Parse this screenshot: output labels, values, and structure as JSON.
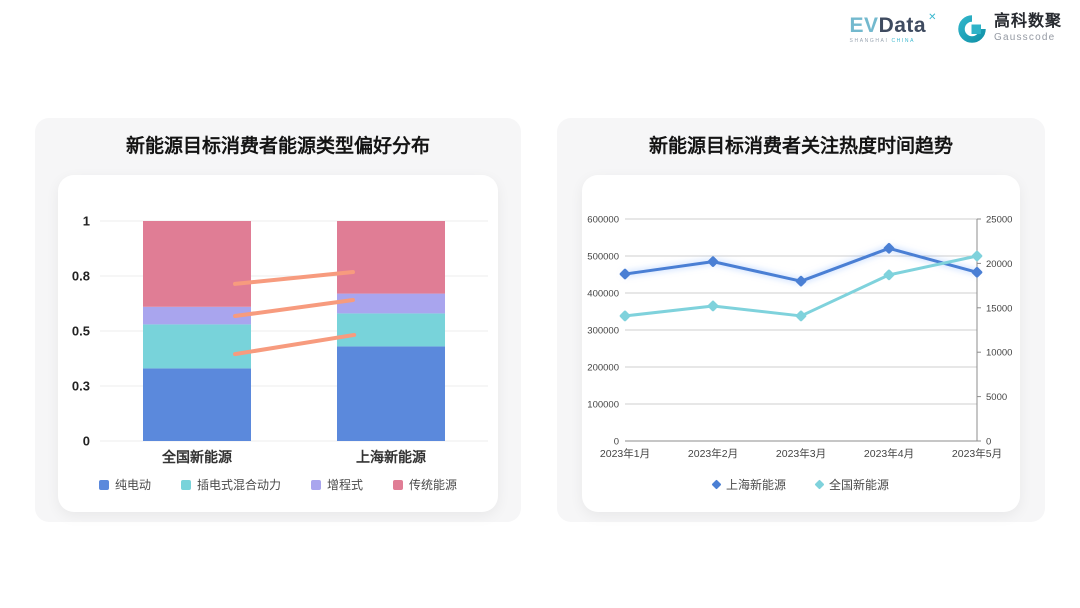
{
  "header": {
    "evdata": {
      "text_ev": "EV",
      "text_data": "Data",
      "superscript": "✕",
      "subtext_left": "SHANGHAI",
      "subtext_right": "CHINA"
    },
    "gausscode": {
      "icon": "gausscode-g-icon",
      "name_cn": "高科数聚",
      "name_en": "Gausscode",
      "icon_color_dark": "#1293a9",
      "icon_color_light": "#2fb3c8"
    }
  },
  "chart_data": [
    {
      "type": "bar",
      "stacked": true,
      "title": "新能源目标消费者能源类型偏好分布",
      "categories": [
        "全国新能源",
        "上海新能源"
      ],
      "series": [
        {
          "name": "纯电动",
          "color": "#5b89dc",
          "values": [
            0.33,
            0.43
          ]
        },
        {
          "name": "插电式混合动力",
          "color": "#78d3da",
          "values": [
            0.2,
            0.15
          ]
        },
        {
          "name": "增程式",
          "color": "#a9a5ee",
          "values": [
            0.08,
            0.09
          ]
        },
        {
          "name": "传统能源",
          "color": "#e07d95",
          "values": [
            0.39,
            0.33
          ]
        }
      ],
      "ylim": [
        0,
        1
      ],
      "ytick_values": [
        0,
        0.25,
        0.5,
        0.75,
        1
      ],
      "ytick_labels": [
        "0",
        "0.3",
        "0.5",
        "0.8",
        "1"
      ],
      "grid": true,
      "gridline_color": "#ececec",
      "legend_position": "bottom",
      "connector_lines": {
        "color": "#f79b7e",
        "segments": [
          {
            "x1": 0.348,
            "v1": 0.714,
            "x2": 0.652,
            "v2": 0.768
          },
          {
            "x1": 0.348,
            "v1": 0.568,
            "x2": 0.652,
            "v2": 0.641
          },
          {
            "x1": 0.348,
            "v1": 0.395,
            "x2": 0.655,
            "v2": 0.482
          }
        ]
      }
    },
    {
      "type": "line",
      "title": "新能源目标消费者关注热度时间趋势",
      "x": [
        "2023年1月",
        "2023年2月",
        "2023年3月",
        "2023年4月",
        "2023年5月"
      ],
      "series": [
        {
          "name": "上海新能源",
          "axis": "right",
          "color": "#4a7fd4",
          "marker": "diamond",
          "glow": true,
          "values": [
            18800,
            20200,
            18000,
            21700,
            19000
          ]
        },
        {
          "name": "全国新能源",
          "axis": "left",
          "color": "#7fd2dc",
          "marker": "diamond",
          "glow": false,
          "values": [
            338000,
            365000,
            338000,
            449000,
            500000
          ]
        }
      ],
      "left_axis": {
        "min": 0,
        "max": 600000,
        "step": 100000,
        "labels": [
          "0",
          "100000",
          "200000",
          "300000",
          "400000",
          "500000",
          "600000"
        ]
      },
      "right_axis": {
        "min": 0,
        "max": 25000,
        "step": 5000,
        "labels": [
          "0",
          "5000",
          "10000",
          "15000",
          "20000",
          "25000"
        ]
      },
      "grid": true,
      "gridline_color": "#cfcfcf",
      "axis_line_color": "#8c8c8c",
      "legend_position": "bottom"
    }
  ]
}
